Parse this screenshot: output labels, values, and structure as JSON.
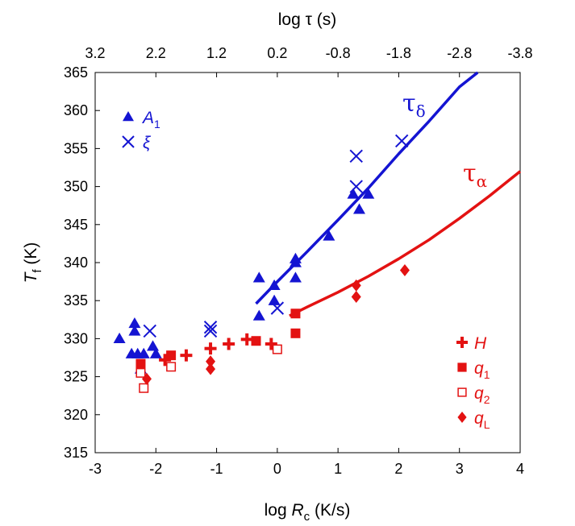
{
  "chart_data": {
    "type": "scatter",
    "xlabel": {
      "prefix": "log ",
      "var": "R",
      "sub": "c",
      "unit": " (K/s)"
    },
    "x2label": "log τ (s)",
    "ylabel": {
      "var": "T",
      "sub": "f",
      "unit": " (K)"
    },
    "xlim": [
      -3,
      4
    ],
    "ylim": [
      315,
      365
    ],
    "xticks": [
      "-3",
      "-2",
      "-1",
      "0",
      "1",
      "2",
      "3",
      "4"
    ],
    "x2ticks": [
      "3.2",
      "2.2",
      "1.2",
      "0.2",
      "-0.8",
      "-1.8",
      "-2.8",
      "-3.8"
    ],
    "yticks": [
      "315",
      "320",
      "325",
      "330",
      "335",
      "340",
      "345",
      "350",
      "355",
      "360",
      "365"
    ],
    "grid": false,
    "colors": {
      "blue": "#1414d2",
      "red": "#e31212"
    },
    "series": [
      {
        "name": "A1",
        "label": "A",
        "label_sub": "1",
        "marker": "triangle",
        "color": "#1414d2",
        "x": [
          -2.6,
          -2.35,
          -2.35,
          -2.4,
          -2.3,
          -2.25,
          -2.2,
          -2.05,
          -2.0,
          -0.3,
          -0.3,
          -0.05,
          -0.05,
          0.3,
          0.3,
          0.3,
          0.85,
          1.25,
          1.35,
          1.5
        ],
        "y": [
          330,
          332,
          331,
          328,
          328,
          326,
          328,
          329,
          328,
          338,
          333,
          337,
          335,
          340.5,
          340,
          338,
          343.5,
          349,
          347,
          349
        ]
      },
      {
        "name": "ξ",
        "label": "ξ",
        "label_sub": "",
        "marker": "x",
        "color": "#1414d2",
        "x": [
          -2.1,
          -1.1,
          -1.1,
          0.0,
          1.3,
          1.3,
          2.05
        ],
        "y": [
          331,
          331,
          331.5,
          334,
          350,
          354,
          356
        ]
      },
      {
        "name": "H",
        "label": "H",
        "label_sub": "",
        "marker": "plus",
        "color": "#e31212",
        "x": [
          -1.85,
          -1.5,
          -1.1,
          -0.8,
          -0.5,
          -0.1
        ],
        "y": [
          327.2,
          327.8,
          328.7,
          329.3,
          329.9,
          329.3
        ]
      },
      {
        "name": "q1",
        "label": "q",
        "label_sub": "1",
        "marker": "square",
        "color": "#e31212",
        "x": [
          -2.25,
          -1.75,
          -0.35,
          0.3,
          0.3
        ],
        "y": [
          326.7,
          327.8,
          329.7,
          333.3,
          330.7
        ]
      },
      {
        "name": "q2",
        "label": "q",
        "label_sub": "2",
        "marker": "square-open",
        "color": "#e31212",
        "x": [
          -2.25,
          -2.2,
          -1.75,
          0.0
        ],
        "y": [
          325.5,
          323.5,
          326.3,
          328.6
        ]
      },
      {
        "name": "qL",
        "label": "q",
        "label_sub": "L",
        "marker": "diamond",
        "color": "#e31212",
        "x": [
          -2.15,
          -1.1,
          -1.1,
          1.3,
          1.3,
          2.1
        ],
        "y": [
          324.7,
          326,
          327,
          337,
          335.5,
          339
        ]
      }
    ],
    "curves": [
      {
        "name": "τδ",
        "label": "τ",
        "label_sub": "δ",
        "color": "#1414d2",
        "x": [
          -0.35,
          0.0,
          0.5,
          1.0,
          1.5,
          2.0,
          2.5,
          3.0,
          3.3
        ],
        "y": [
          334.6,
          337.5,
          341.5,
          345.6,
          349.8,
          354.3,
          358.6,
          363.1,
          365.5
        ]
      },
      {
        "name": "τα",
        "label": "τ",
        "label_sub": "α",
        "color": "#e31212",
        "x": [
          0.2,
          0.5,
          1.0,
          1.5,
          2.0,
          2.5,
          3.0,
          3.5,
          4.0
        ],
        "y": [
          333.0,
          334.2,
          336.1,
          338.2,
          340.5,
          343.0,
          345.8,
          348.8,
          352.0
        ]
      }
    ],
    "legend": [
      {
        "label": "A",
        "sub": "1",
        "marker": "triangle",
        "color": "#1414d2",
        "position": "top-left"
      },
      {
        "label": "ξ",
        "sub": "",
        "marker": "x",
        "color": "#1414d2",
        "position": "top-left"
      },
      {
        "label": "H",
        "sub": "",
        "marker": "plus",
        "color": "#e31212",
        "position": "bottom-right"
      },
      {
        "label": "q",
        "sub": "1",
        "marker": "square",
        "color": "#e31212",
        "position": "bottom-right"
      },
      {
        "label": "q",
        "sub": "2",
        "marker": "square-open",
        "color": "#e31212",
        "position": "bottom-right"
      },
      {
        "label": "q",
        "sub": "L",
        "marker": "diamond",
        "color": "#e31212",
        "position": "bottom-right"
      }
    ]
  }
}
